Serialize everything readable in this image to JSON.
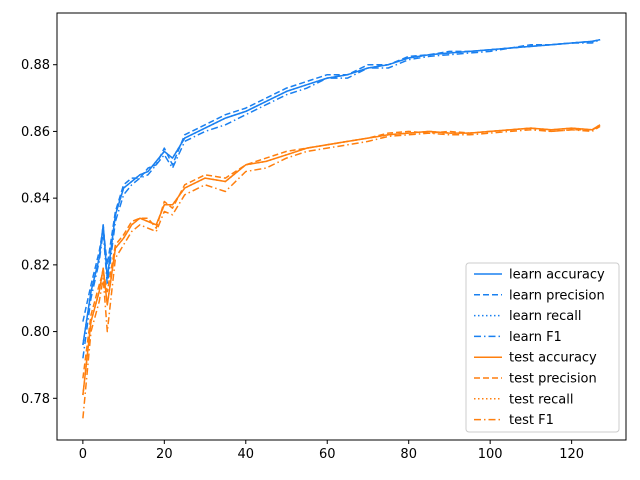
{
  "chart_data": {
    "type": "line",
    "title": "",
    "xlabel": "",
    "ylabel": "",
    "xlim": [
      -6.35,
      133.35
    ],
    "ylim": [
      0.7675,
      0.8955
    ],
    "xticks": [
      0,
      20,
      40,
      60,
      80,
      100,
      120
    ],
    "yticks": [
      0.78,
      0.8,
      0.82,
      0.84,
      0.86,
      0.88
    ],
    "tick_labels_x": [
      "0",
      "20",
      "40",
      "60",
      "80",
      "100",
      "120"
    ],
    "tick_labels_y": [
      "0.78",
      "0.80",
      "0.82",
      "0.84",
      "0.86",
      "0.88"
    ],
    "grid": false,
    "legend_position": "lower-right",
    "colors": {
      "learn": "#1a80f0",
      "test": "#ff7f0e"
    },
    "x": [
      0,
      2,
      4,
      5,
      6,
      8,
      10,
      12,
      14,
      16,
      18,
      20,
      22,
      25,
      30,
      35,
      40,
      45,
      50,
      55,
      60,
      65,
      70,
      75,
      80,
      85,
      90,
      95,
      100,
      105,
      110,
      115,
      120,
      125,
      127
    ],
    "series": [
      {
        "name": "learn accuracy",
        "style": "solid",
        "color": "#1a80f0",
        "values": [
          0.796,
          0.812,
          0.822,
          0.832,
          0.816,
          0.835,
          0.843,
          0.845,
          0.847,
          0.848,
          0.851,
          0.854,
          0.852,
          0.858,
          0.861,
          0.864,
          0.866,
          0.869,
          0.872,
          0.874,
          0.876,
          0.877,
          0.879,
          0.88,
          0.882,
          0.883,
          0.8835,
          0.884,
          0.8845,
          0.885,
          0.8855,
          0.886,
          0.8865,
          0.887,
          0.8875
        ]
      },
      {
        "name": "learn precision",
        "style": "dashed",
        "color": "#1a80f0",
        "values": [
          0.803,
          0.814,
          0.824,
          0.831,
          0.82,
          0.836,
          0.844,
          0.846,
          0.846,
          0.849,
          0.85,
          0.855,
          0.85,
          0.859,
          0.862,
          0.865,
          0.867,
          0.87,
          0.873,
          0.875,
          0.877,
          0.877,
          0.88,
          0.88,
          0.8825,
          0.883,
          0.884,
          0.884,
          0.8845,
          0.885,
          0.886,
          0.886,
          0.8865,
          0.887,
          0.8875
        ]
      },
      {
        "name": "learn recall",
        "style": "dotted",
        "color": "#1a80f0",
        "values": [
          0.796,
          0.812,
          0.822,
          0.832,
          0.816,
          0.835,
          0.843,
          0.845,
          0.847,
          0.848,
          0.851,
          0.854,
          0.852,
          0.858,
          0.861,
          0.864,
          0.866,
          0.869,
          0.872,
          0.874,
          0.876,
          0.877,
          0.879,
          0.88,
          0.882,
          0.883,
          0.8835,
          0.884,
          0.8845,
          0.885,
          0.8855,
          0.886,
          0.8865,
          0.887,
          0.8875
        ]
      },
      {
        "name": "learn F1",
        "style": "dashdot",
        "color": "#1a80f0",
        "values": [
          0.792,
          0.81,
          0.821,
          0.83,
          0.814,
          0.833,
          0.841,
          0.844,
          0.846,
          0.847,
          0.85,
          0.853,
          0.849,
          0.857,
          0.86,
          0.862,
          0.865,
          0.868,
          0.871,
          0.873,
          0.876,
          0.876,
          0.879,
          0.879,
          0.8815,
          0.8825,
          0.883,
          0.8835,
          0.884,
          0.885,
          0.8855,
          0.886,
          0.8865,
          0.8865,
          0.8875
        ]
      },
      {
        "name": "test accuracy",
        "style": "solid",
        "color": "#ff7f0e",
        "values": [
          0.781,
          0.803,
          0.812,
          0.819,
          0.808,
          0.825,
          0.828,
          0.832,
          0.834,
          0.833,
          0.832,
          0.838,
          0.838,
          0.843,
          0.846,
          0.845,
          0.85,
          0.851,
          0.853,
          0.855,
          0.856,
          0.857,
          0.858,
          0.859,
          0.8595,
          0.86,
          0.8595,
          0.8595,
          0.86,
          0.8605,
          0.861,
          0.8605,
          0.861,
          0.8605,
          0.862
        ]
      },
      {
        "name": "test precision",
        "style": "dashed",
        "color": "#ff7f0e",
        "values": [
          0.786,
          0.805,
          0.814,
          0.818,
          0.812,
          0.826,
          0.829,
          0.833,
          0.834,
          0.834,
          0.831,
          0.839,
          0.837,
          0.844,
          0.847,
          0.846,
          0.85,
          0.852,
          0.854,
          0.855,
          0.856,
          0.857,
          0.858,
          0.8595,
          0.86,
          0.8595,
          0.86,
          0.8595,
          0.86,
          0.8605,
          0.861,
          0.86,
          0.8605,
          0.8605,
          0.8615
        ]
      },
      {
        "name": "test recall",
        "style": "dotted",
        "color": "#ff7f0e",
        "values": [
          0.781,
          0.803,
          0.812,
          0.819,
          0.808,
          0.825,
          0.828,
          0.832,
          0.834,
          0.833,
          0.832,
          0.838,
          0.838,
          0.843,
          0.846,
          0.845,
          0.85,
          0.851,
          0.853,
          0.855,
          0.856,
          0.857,
          0.858,
          0.859,
          0.8595,
          0.86,
          0.8595,
          0.8595,
          0.86,
          0.8605,
          0.861,
          0.8605,
          0.861,
          0.8605,
          0.862
        ]
      },
      {
        "name": "test F1",
        "style": "dashdot",
        "color": "#ff7f0e",
        "values": [
          0.774,
          0.8,
          0.809,
          0.816,
          0.8,
          0.822,
          0.826,
          0.83,
          0.832,
          0.831,
          0.83,
          0.836,
          0.835,
          0.841,
          0.844,
          0.842,
          0.848,
          0.849,
          0.852,
          0.854,
          0.855,
          0.856,
          0.857,
          0.8585,
          0.859,
          0.8595,
          0.859,
          0.859,
          0.8595,
          0.86,
          0.8605,
          0.86,
          0.8605,
          0.86,
          0.8615
        ]
      }
    ]
  }
}
